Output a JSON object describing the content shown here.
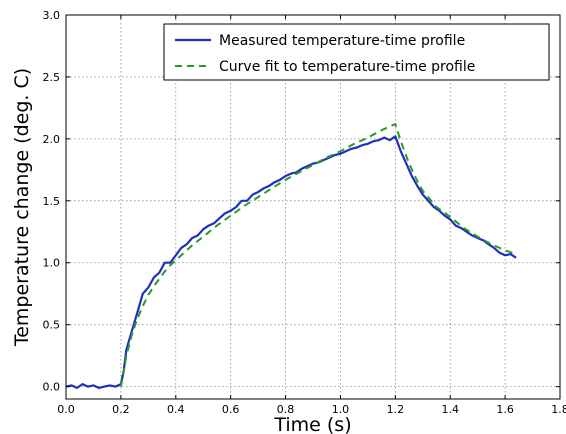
{
  "chart_data": {
    "type": "line",
    "xlabel": "Time (s)",
    "ylabel": "Temperature change (deg. C)",
    "xlim": [
      0.0,
      1.8
    ],
    "ylim": [
      -0.1,
      3.0
    ],
    "xticks": [
      "0.0",
      "0.2",
      "0.4",
      "0.6",
      "0.8",
      "1.0",
      "1.2",
      "1.4",
      "1.6",
      "1.8"
    ],
    "yticks": [
      "0.0",
      "0.5",
      "1.0",
      "1.5",
      "2.0",
      "2.5",
      "3.0"
    ],
    "grid": true,
    "legend_position": "top-right",
    "series": [
      {
        "name": "Measured temperature-time profile",
        "color": "#1f2fbf",
        "style": "solid",
        "x": [
          0.0,
          0.02,
          0.04,
          0.06,
          0.08,
          0.1,
          0.12,
          0.14,
          0.16,
          0.18,
          0.2,
          0.21,
          0.22,
          0.24,
          0.26,
          0.28,
          0.3,
          0.32,
          0.34,
          0.36,
          0.38,
          0.4,
          0.42,
          0.44,
          0.46,
          0.48,
          0.5,
          0.52,
          0.54,
          0.56,
          0.58,
          0.6,
          0.62,
          0.64,
          0.66,
          0.68,
          0.7,
          0.72,
          0.74,
          0.76,
          0.78,
          0.8,
          0.82,
          0.84,
          0.86,
          0.88,
          0.9,
          0.92,
          0.94,
          0.96,
          0.98,
          1.0,
          1.02,
          1.04,
          1.06,
          1.08,
          1.1,
          1.12,
          1.14,
          1.16,
          1.18,
          1.2,
          1.22,
          1.24,
          1.26,
          1.28,
          1.3,
          1.32,
          1.34,
          1.36,
          1.38,
          1.4,
          1.42,
          1.44,
          1.46,
          1.48,
          1.5,
          1.52,
          1.54,
          1.56,
          1.58,
          1.6,
          1.62,
          1.64
        ],
        "y": [
          0.0,
          0.01,
          -0.01,
          0.02,
          0.0,
          0.01,
          -0.01,
          0.0,
          0.01,
          0.0,
          0.02,
          0.12,
          0.3,
          0.45,
          0.6,
          0.75,
          0.8,
          0.88,
          0.92,
          1.0,
          1.0,
          1.06,
          1.12,
          1.15,
          1.2,
          1.22,
          1.27,
          1.3,
          1.32,
          1.36,
          1.4,
          1.42,
          1.45,
          1.5,
          1.5,
          1.55,
          1.57,
          1.6,
          1.62,
          1.65,
          1.67,
          1.7,
          1.72,
          1.73,
          1.76,
          1.78,
          1.8,
          1.81,
          1.83,
          1.85,
          1.87,
          1.88,
          1.9,
          1.92,
          1.93,
          1.95,
          1.96,
          1.98,
          1.99,
          2.01,
          1.99,
          2.02,
          1.9,
          1.8,
          1.7,
          1.62,
          1.55,
          1.5,
          1.45,
          1.42,
          1.38,
          1.35,
          1.3,
          1.28,
          1.25,
          1.22,
          1.2,
          1.18,
          1.15,
          1.12,
          1.08,
          1.06,
          1.07,
          1.04
        ]
      },
      {
        "name": "Curve fit to temperature-time profile",
        "color": "#2a9a2a",
        "style": "dashed",
        "x": [
          0.2,
          0.22,
          0.24,
          0.26,
          0.28,
          0.3,
          0.32,
          0.34,
          0.36,
          0.38,
          0.4,
          0.43,
          0.46,
          0.5,
          0.55,
          0.6,
          0.65,
          0.7,
          0.75,
          0.8,
          0.85,
          0.9,
          0.95,
          1.0,
          1.05,
          1.1,
          1.15,
          1.2,
          1.22,
          1.25,
          1.28,
          1.3,
          1.35,
          1.4,
          1.45,
          1.5,
          1.55,
          1.6,
          1.64
        ],
        "y": [
          0.0,
          0.25,
          0.42,
          0.55,
          0.65,
          0.74,
          0.81,
          0.87,
          0.93,
          0.98,
          1.02,
          1.08,
          1.14,
          1.21,
          1.3,
          1.38,
          1.46,
          1.53,
          1.6,
          1.67,
          1.73,
          1.79,
          1.85,
          1.9,
          1.96,
          2.01,
          2.07,
          2.12,
          1.98,
          1.8,
          1.66,
          1.58,
          1.45,
          1.37,
          1.28,
          1.21,
          1.15,
          1.1,
          1.07
        ]
      }
    ]
  }
}
